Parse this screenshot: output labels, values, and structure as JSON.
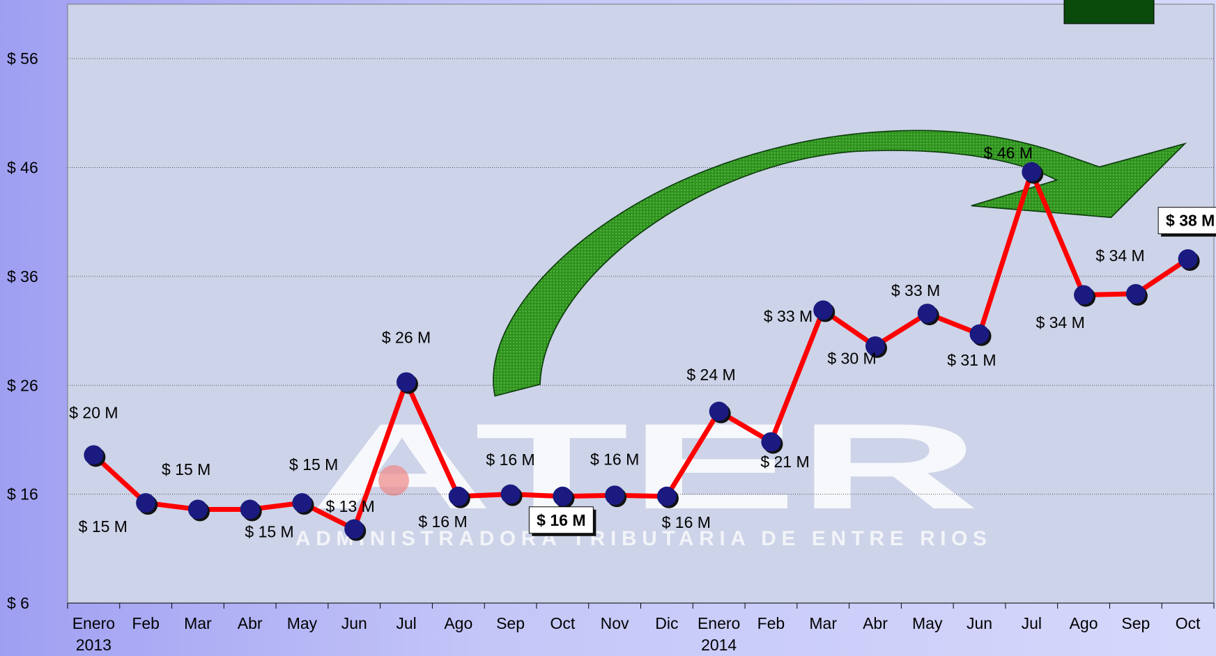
{
  "chart_data": {
    "type": "line",
    "watermark": {
      "logo": "ATER",
      "subtitle": "ADMINISTRADORA TRIBUTARIA DE ENTRE RIOS"
    },
    "categories": [
      "Enero\n2013",
      "Feb",
      "Mar",
      "Abr",
      "May",
      "Jun",
      "Jul",
      "Ago",
      "Sep",
      "Oct",
      "Nov",
      "Dic",
      "Enero\n2014",
      "Feb",
      "Mar",
      "Abr",
      "May",
      "Jun",
      "Jul",
      "Ago",
      "Sep",
      "Oct"
    ],
    "series": [
      {
        "color": "#ff0000",
        "values": [
          19.6,
          15.2,
          14.6,
          14.6,
          15.2,
          12.8,
          26.3,
          15.8,
          16.0,
          15.8,
          15.9,
          15.8,
          23.6,
          20.8,
          32.9,
          29.6,
          32.6,
          30.7,
          45.6,
          34.3,
          34.4,
          37.6
        ],
        "value_labels": [
          "$ 20 M",
          "$ 15 M",
          "$ 15 M",
          "$ 15 M",
          "$ 15 M",
          "$ 13 M",
          "$ 26 M",
          "$ 16 M",
          "$ 16 M",
          "$ 16 M",
          "$ 16 M",
          "$ 16 M",
          "$ 24 M",
          "$ 21 M",
          "$ 33 M",
          "$ 30 M",
          "$ 33 M",
          "$ 31 M",
          "$ 46 M",
          "$ 34 M",
          "$ 34 M",
          "$ 38 M"
        ]
      }
    ],
    "ylim": [
      6,
      61
    ],
    "yticks": [
      {
        "value": 6,
        "label": "$ 6"
      },
      {
        "value": 16,
        "label": "$ 16"
      },
      {
        "value": 26,
        "label": "$ 26"
      },
      {
        "value": 36,
        "label": "$ 36"
      },
      {
        "value": 46,
        "label": "$ 46"
      },
      {
        "value": 56,
        "label": "$ 56"
      }
    ],
    "grid": true
  }
}
